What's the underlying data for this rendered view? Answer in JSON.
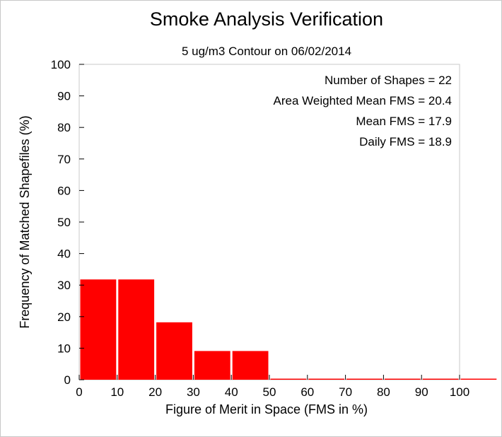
{
  "chart_data": {
    "type": "bar",
    "title": "Smoke Analysis Verification",
    "subtitle": "5 ug/m3 Contour on 06/02/2014",
    "xlabel": "Figure of Merit in Space (FMS in %)",
    "ylabel": "Frequency of Matched Shapefiles (%)",
    "xlim": [
      0,
      100
    ],
    "ylim": [
      0,
      100
    ],
    "xticks": [
      0,
      10,
      20,
      30,
      40,
      50,
      60,
      70,
      80,
      90,
      100
    ],
    "yticks": [
      0,
      10,
      20,
      30,
      40,
      50,
      60,
      70,
      80,
      90,
      100
    ],
    "bin_width": 10,
    "bin_starts": [
      0,
      10,
      20,
      30,
      40,
      50,
      60,
      70,
      80,
      90,
      100
    ],
    "values": [
      31.8,
      31.8,
      18.2,
      9.1,
      9.1,
      0,
      0,
      0,
      0,
      0,
      0
    ],
    "bar_color": "#ff0000",
    "grid": false,
    "annotations": [
      "Number of Shapes = 22",
      "Area Weighted Mean FMS = 20.4",
      "Mean FMS = 17.9",
      "Daily FMS = 18.9"
    ]
  }
}
